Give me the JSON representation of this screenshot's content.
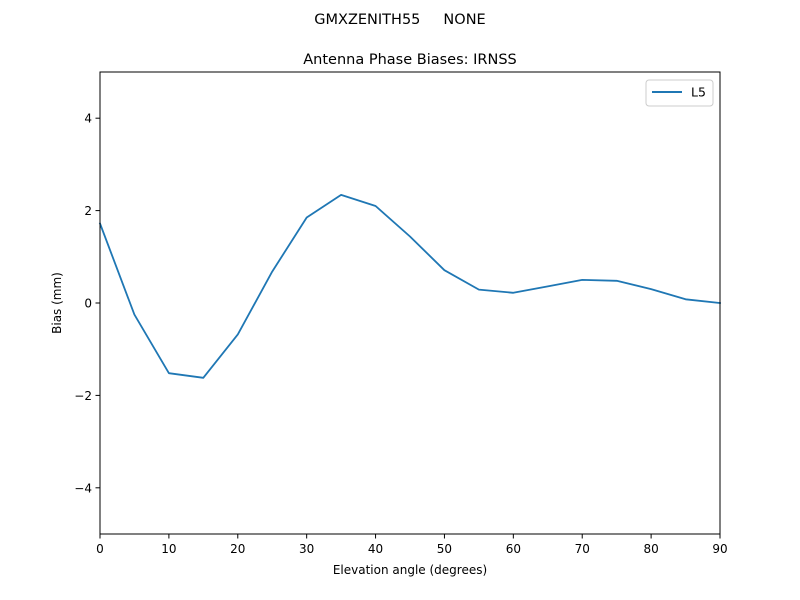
{
  "suptitle": "GMXZENITH55     NONE",
  "chart_data": {
    "type": "line",
    "title": "Antenna Phase Biases: IRNSS",
    "xlabel": "Elevation angle (degrees)",
    "ylabel": "Bias (mm)",
    "xlim": [
      0,
      90
    ],
    "ylim": [
      -5,
      5
    ],
    "xticks": [
      0,
      10,
      20,
      30,
      40,
      50,
      60,
      70,
      80,
      90
    ],
    "yticks": [
      -4,
      -2,
      0,
      2,
      4
    ],
    "grid": false,
    "legend_position": "top-right",
    "series": [
      {
        "name": "L5",
        "color": "#1f77b4",
        "x": [
          0,
          5,
          10,
          15,
          20,
          25,
          30,
          35,
          40,
          45,
          50,
          55,
          60,
          65,
          70,
          75,
          80,
          85,
          90
        ],
        "y": [
          1.72,
          -0.25,
          -1.52,
          -1.62,
          -0.68,
          0.68,
          1.85,
          2.34,
          2.1,
          1.44,
          0.71,
          0.29,
          0.22,
          0.36,
          0.5,
          0.48,
          0.3,
          0.08,
          0.0
        ]
      }
    ]
  }
}
